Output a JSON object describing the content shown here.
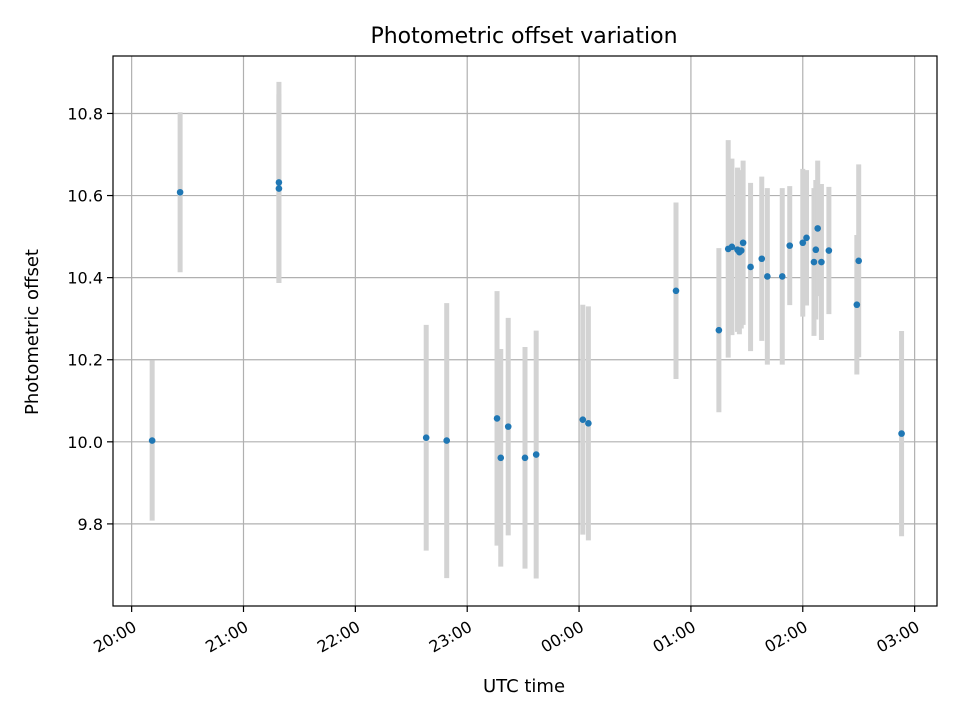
{
  "chart_data": {
    "type": "scatter",
    "title": "Photometric offset variation",
    "xlabel": "UTC time",
    "ylabel": "Photometric offset",
    "grid": true,
    "x_axis": {
      "kind": "time",
      "range": [
        "19:50",
        "03:12"
      ],
      "ticks": [
        "20:00",
        "21:00",
        "22:00",
        "23:00",
        "00:00",
        "01:00",
        "02:00",
        "03:00"
      ]
    },
    "y_axis": {
      "range": [
        9.6,
        10.94
      ],
      "ticks": [
        9.8,
        10.0,
        10.2,
        10.4,
        10.6,
        10.8
      ],
      "tick_labels": [
        "9.8",
        "10.0",
        "10.2",
        "10.4",
        "10.6",
        "10.8"
      ]
    },
    "colors": {
      "point": "#1f77b4",
      "errorbar": "#d3d3d3",
      "grid": "#b0b0b0"
    },
    "points": [
      {
        "x": "20:11",
        "y": 10.003,
        "err": 0.195
      },
      {
        "x": "20:26",
        "y": 10.608,
        "err": 0.195
      },
      {
        "x": "21:19",
        "y": 10.632,
        "err": 0.245
      },
      {
        "x": "21:19",
        "y": 10.617,
        "err": 0.23
      },
      {
        "x": "22:38",
        "y": 10.01,
        "err": 0.275
      },
      {
        "x": "22:49",
        "y": 10.003,
        "err": 0.335
      },
      {
        "x": "23:16",
        "y": 10.057,
        "err": 0.31
      },
      {
        "x": "23:18",
        "y": 9.961,
        "err": 0.265
      },
      {
        "x": "23:22",
        "y": 10.037,
        "err": 0.265
      },
      {
        "x": "23:31",
        "y": 9.961,
        "err": 0.27
      },
      {
        "x": "23:37",
        "y": 9.969,
        "err": 0.302
      },
      {
        "x": "00:02",
        "y": 10.054,
        "err": 0.28
      },
      {
        "x": "00:05",
        "y": 10.045,
        "err": 0.285
      },
      {
        "x": "00:52",
        "y": 10.368,
        "err": 0.215
      },
      {
        "x": "01:15",
        "y": 10.272,
        "err": 0.2
      },
      {
        "x": "01:20",
        "y": 10.47,
        "err": 0.265
      },
      {
        "x": "01:22",
        "y": 10.475,
        "err": 0.215
      },
      {
        "x": "01:25",
        "y": 10.468,
        "err": 0.2
      },
      {
        "x": "01:26",
        "y": 10.462,
        "err": 0.2
      },
      {
        "x": "01:27",
        "y": 10.466,
        "err": 0.19
      },
      {
        "x": "01:28",
        "y": 10.485,
        "err": 0.2
      },
      {
        "x": "01:32",
        "y": 10.426,
        "err": 0.205
      },
      {
        "x": "01:38",
        "y": 10.446,
        "err": 0.2
      },
      {
        "x": "01:41",
        "y": 10.403,
        "err": 0.215
      },
      {
        "x": "01:49",
        "y": 10.403,
        "err": 0.215
      },
      {
        "x": "01:53",
        "y": 10.478,
        "err": 0.145
      },
      {
        "x": "02:00",
        "y": 10.485,
        "err": 0.18
      },
      {
        "x": "02:02",
        "y": 10.497,
        "err": 0.165
      },
      {
        "x": "02:06",
        "y": 10.438,
        "err": 0.18
      },
      {
        "x": "02:07",
        "y": 10.468,
        "err": 0.17
      },
      {
        "x": "02:08",
        "y": 10.52,
        "err": 0.165
      },
      {
        "x": "02:10",
        "y": 10.438,
        "err": 0.19
      },
      {
        "x": "02:14",
        "y": 10.466,
        "err": 0.155
      },
      {
        "x": "02:29",
        "y": 10.334,
        "err": 0.17
      },
      {
        "x": "02:30",
        "y": 10.441,
        "err": 0.235
      },
      {
        "x": "02:53",
        "y": 10.02,
        "err": 0.25
      }
    ]
  }
}
